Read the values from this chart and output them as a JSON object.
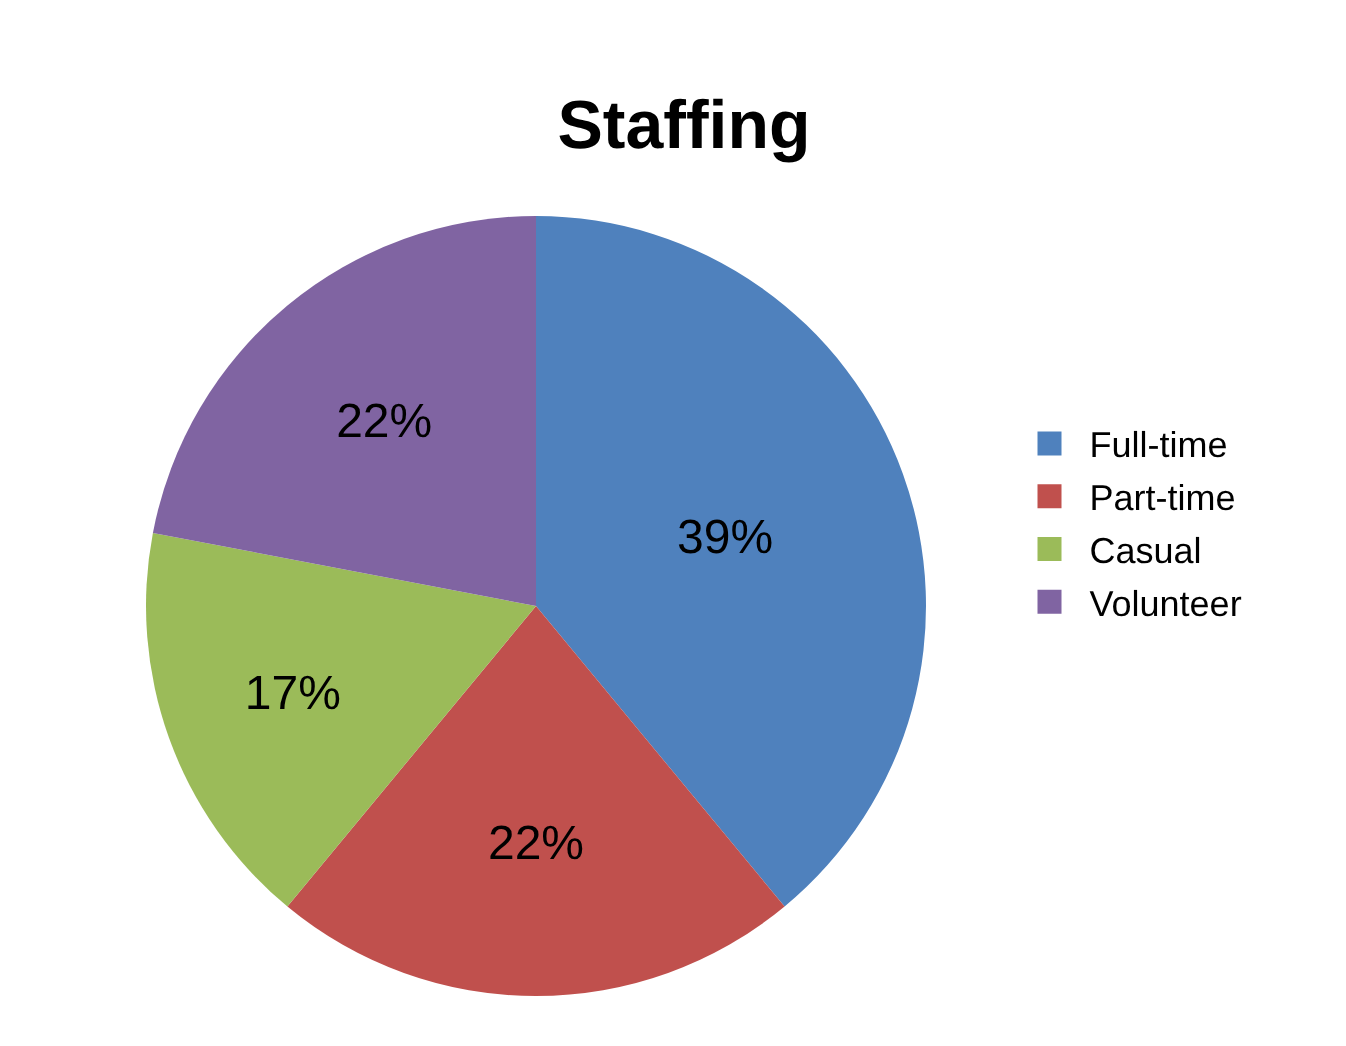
{
  "chart_data": {
    "type": "pie",
    "title": "Staffing",
    "categories": [
      "Full-time",
      "Part-time",
      "Casual",
      "Volunteer"
    ],
    "values": [
      39,
      22,
      17,
      22
    ],
    "value_labels": [
      "39%",
      "22%",
      "17%",
      "22%"
    ],
    "colors": [
      "#4f81bd",
      "#c0504d",
      "#9bbb59",
      "#8064a2"
    ],
    "legend": "right"
  }
}
